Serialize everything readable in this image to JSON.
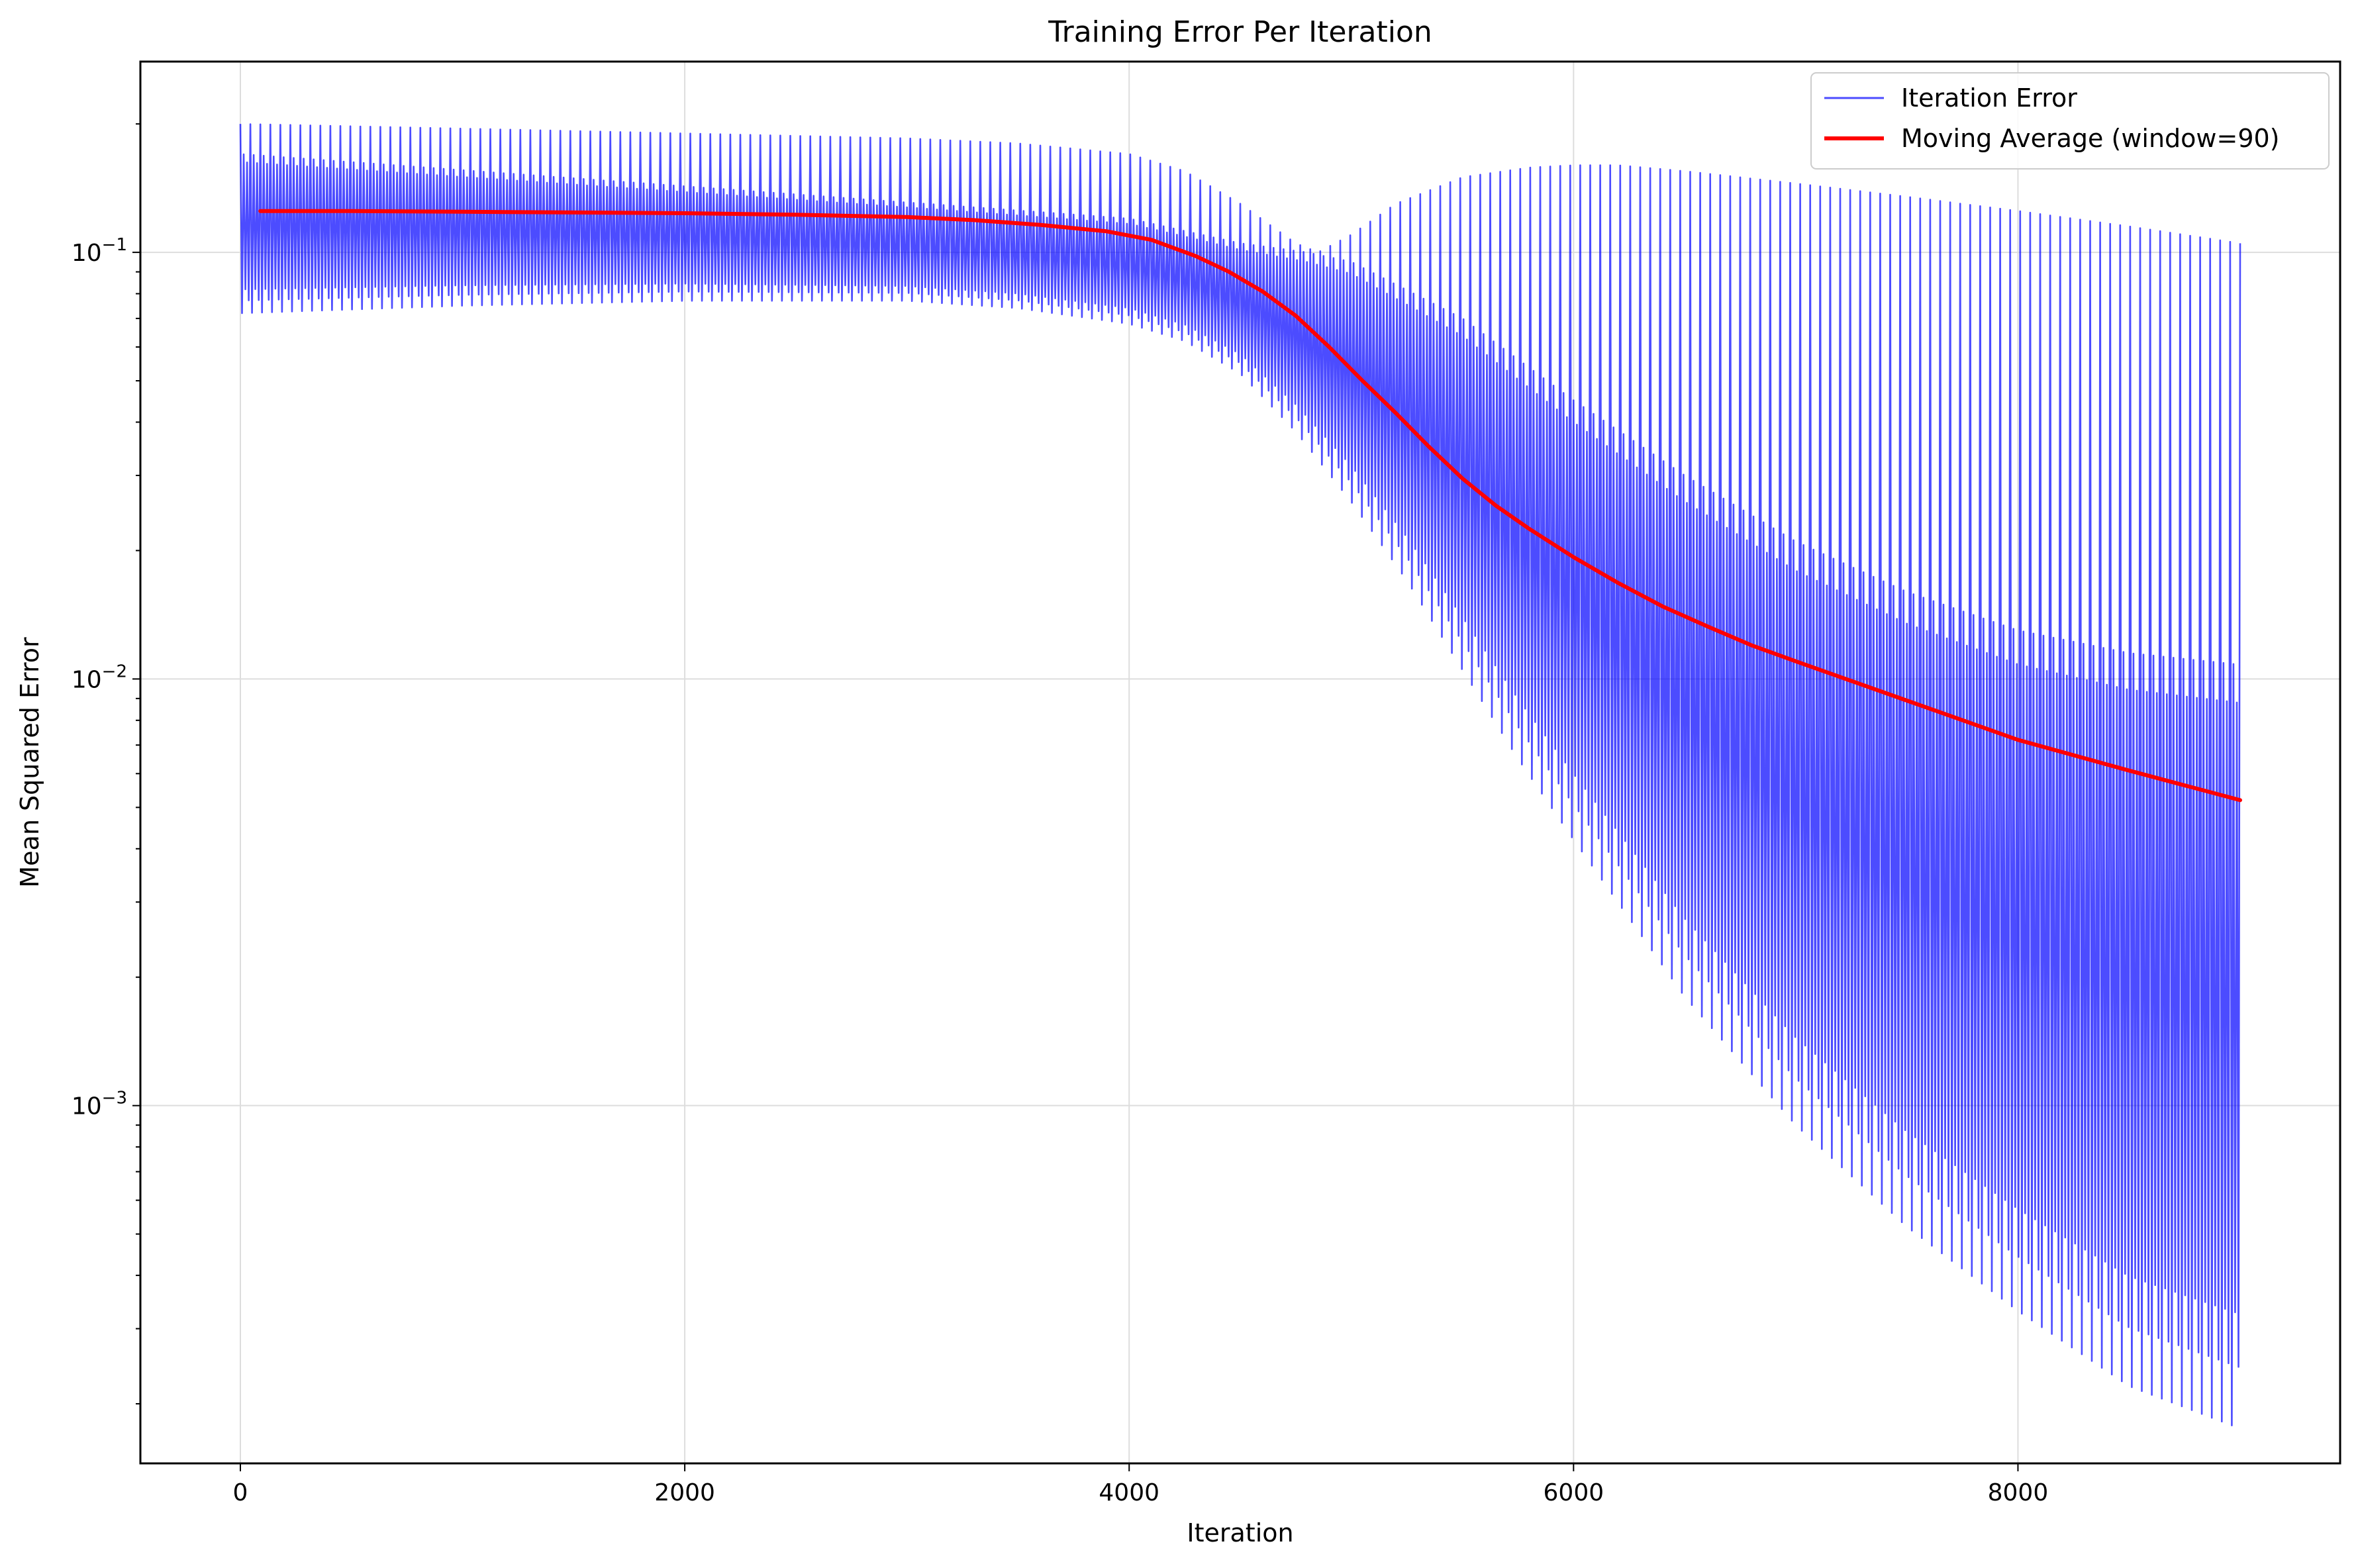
{
  "chart_data": {
    "type": "line",
    "title": "Training Error Per Iteration",
    "xlabel": "Iteration",
    "ylabel": "Mean Squared Error",
    "yscale": "log",
    "xlim": [
      -450,
      9450
    ],
    "ylim": [
      0.000145,
      0.28
    ],
    "xticks": [
      {
        "value": 0,
        "label": "0"
      },
      {
        "value": 2000,
        "label": "2000"
      },
      {
        "value": 4000,
        "label": "4000"
      },
      {
        "value": 6000,
        "label": "6000"
      },
      {
        "value": 8000,
        "label": "8000"
      }
    ],
    "yticks": [
      {
        "value": 0.1,
        "base": "10",
        "exp": "−1"
      },
      {
        "value": 0.01,
        "base": "10",
        "exp": "−2"
      },
      {
        "value": 0.001,
        "base": "10",
        "exp": "−3"
      }
    ],
    "grid": true,
    "legend_position": "top-right",
    "series": [
      {
        "name": "Iteration Error",
        "color": "#0000ff",
        "opacity": 0.7,
        "kind": "oscillating band",
        "x_start": 0,
        "x_end": 9000,
        "cycle_length": 45,
        "upper_envelope": {
          "x": [
            0,
            1000,
            2000,
            3000,
            3500,
            4000,
            4250,
            4500,
            4750,
            4850,
            5000,
            5200,
            5500,
            5800,
            6000,
            6200,
            6500,
            7000,
            7500,
            8000,
            8500,
            9000
          ],
          "y": [
            0.2,
            0.195,
            0.19,
            0.185,
            0.18,
            0.17,
            0.155,
            0.13,
            0.105,
            0.1,
            0.11,
            0.13,
            0.15,
            0.158,
            0.16,
            0.16,
            0.155,
            0.145,
            0.135,
            0.125,
            0.115,
            0.105
          ]
        },
        "upper_secondary": {
          "x": [
            0,
            4000,
            4500,
            4800,
            5000,
            5500,
            6000,
            6500,
            7000,
            7500,
            8000,
            8500,
            9000
          ],
          "y": [
            0.17,
            0.12,
            0.105,
            0.1,
            0.095,
            0.07,
            0.045,
            0.03,
            0.021,
            0.016,
            0.013,
            0.0115,
            0.0108
          ]
        },
        "lower_envelope": {
          "x": [
            0,
            1000,
            2000,
            3000,
            3500,
            4000,
            4250,
            4500,
            4750,
            5000,
            5250,
            5500,
            5750,
            6000,
            6500,
            7000,
            7500,
            8000,
            8500,
            9000
          ],
          "y": [
            0.072,
            0.075,
            0.077,
            0.077,
            0.074,
            0.068,
            0.062,
            0.052,
            0.038,
            0.026,
            0.017,
            0.0105,
            0.0065,
            0.0042,
            0.0018,
            0.0009,
            0.00052,
            0.00033,
            0.00022,
            0.000175
          ]
        }
      },
      {
        "name": "Moving Average (window=90)",
        "color": "#ff0000",
        "x": [
          90,
          500,
          1000,
          1500,
          2000,
          2500,
          3000,
          3300,
          3600,
          3900,
          4100,
          4300,
          4450,
          4600,
          4750,
          4900,
          5050,
          5200,
          5350,
          5500,
          5650,
          5800,
          6000,
          6200,
          6400,
          6600,
          6800,
          7000,
          7500,
          8000,
          8500,
          9000
        ],
        "y": [
          0.125,
          0.125,
          0.1245,
          0.124,
          0.1235,
          0.1225,
          0.121,
          0.119,
          0.116,
          0.112,
          0.107,
          0.098,
          0.09,
          0.081,
          0.071,
          0.06,
          0.05,
          0.042,
          0.035,
          0.0295,
          0.0255,
          0.0225,
          0.0193,
          0.0168,
          0.0148,
          0.0133,
          0.012,
          0.011,
          0.0089,
          0.0072,
          0.0061,
          0.0052
        ]
      }
    ]
  }
}
